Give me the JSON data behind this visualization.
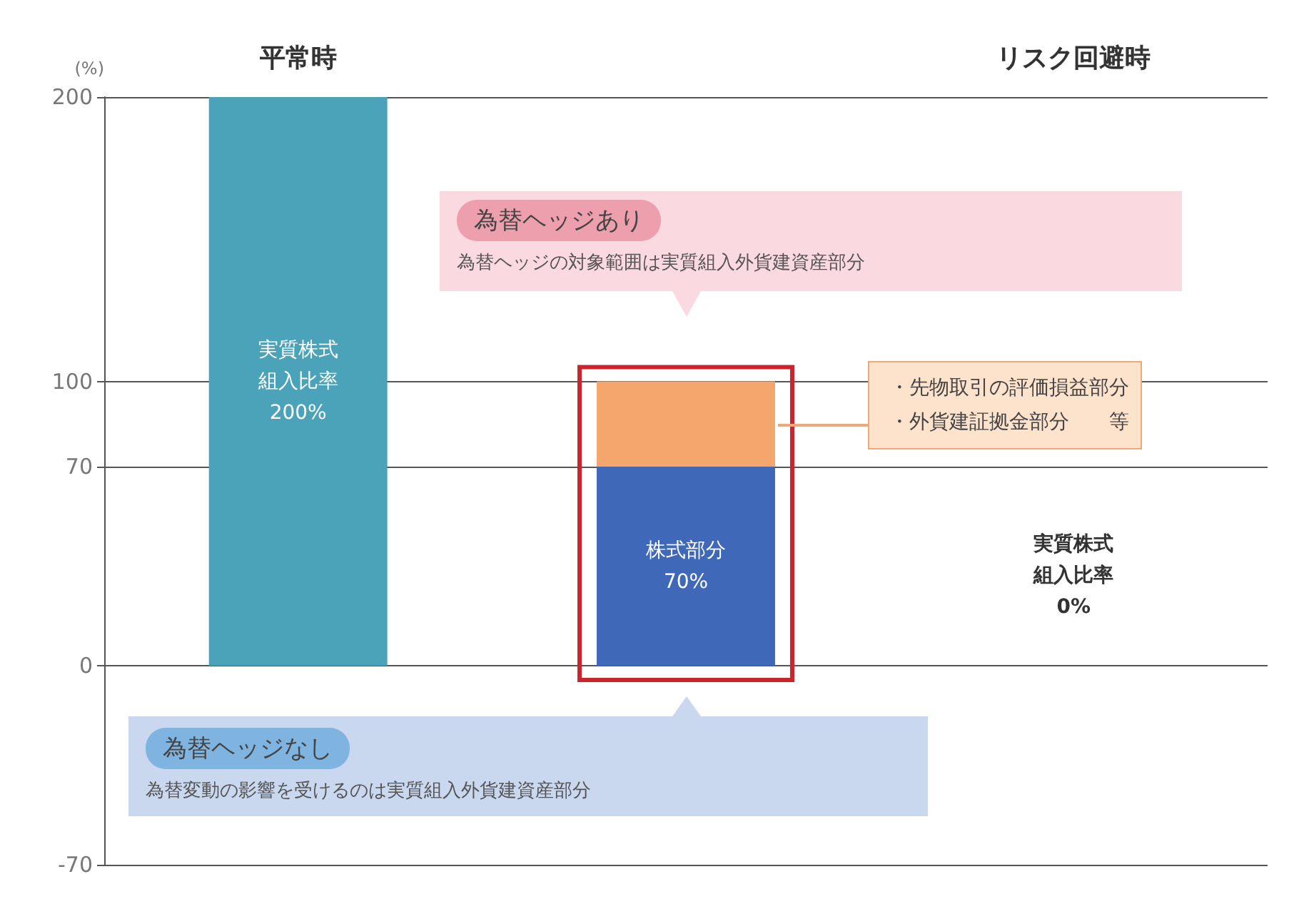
{
  "chart_data": {
    "type": "bar",
    "stacked": true,
    "ylabel": "(%)",
    "categories": [
      "平常時",
      null,
      "リスク回避時"
    ],
    "series": [
      {
        "colors": [
          "#4aa3b8",
          "#3f68b8",
          "#ffffff"
        ],
        "values": [
          200,
          70,
          0
        ],
        "value_labels": [
          "実質株式組入比率200%",
          "株式部分70%",
          "実質株式組入比率0%"
        ]
      },
      {
        "color": "#f4a66c",
        "values": [
          null,
          30,
          null
        ]
      }
    ],
    "ylim": [
      -70,
      200
    ],
    "yticks": [
      -70,
      0,
      70,
      100,
      200
    ],
    "grid": "y",
    "annotations": [
      "為替ヘッジあり",
      "為替ヘッジの対象範囲は実質組入外貨建資産部分",
      "・先物取引の評価損益部分",
      "・外貨建証拠金部分　　等",
      "為替ヘッジなし",
      "為替変動の影響を受けるのは実質組入外貨建資産部分"
    ]
  }
}
